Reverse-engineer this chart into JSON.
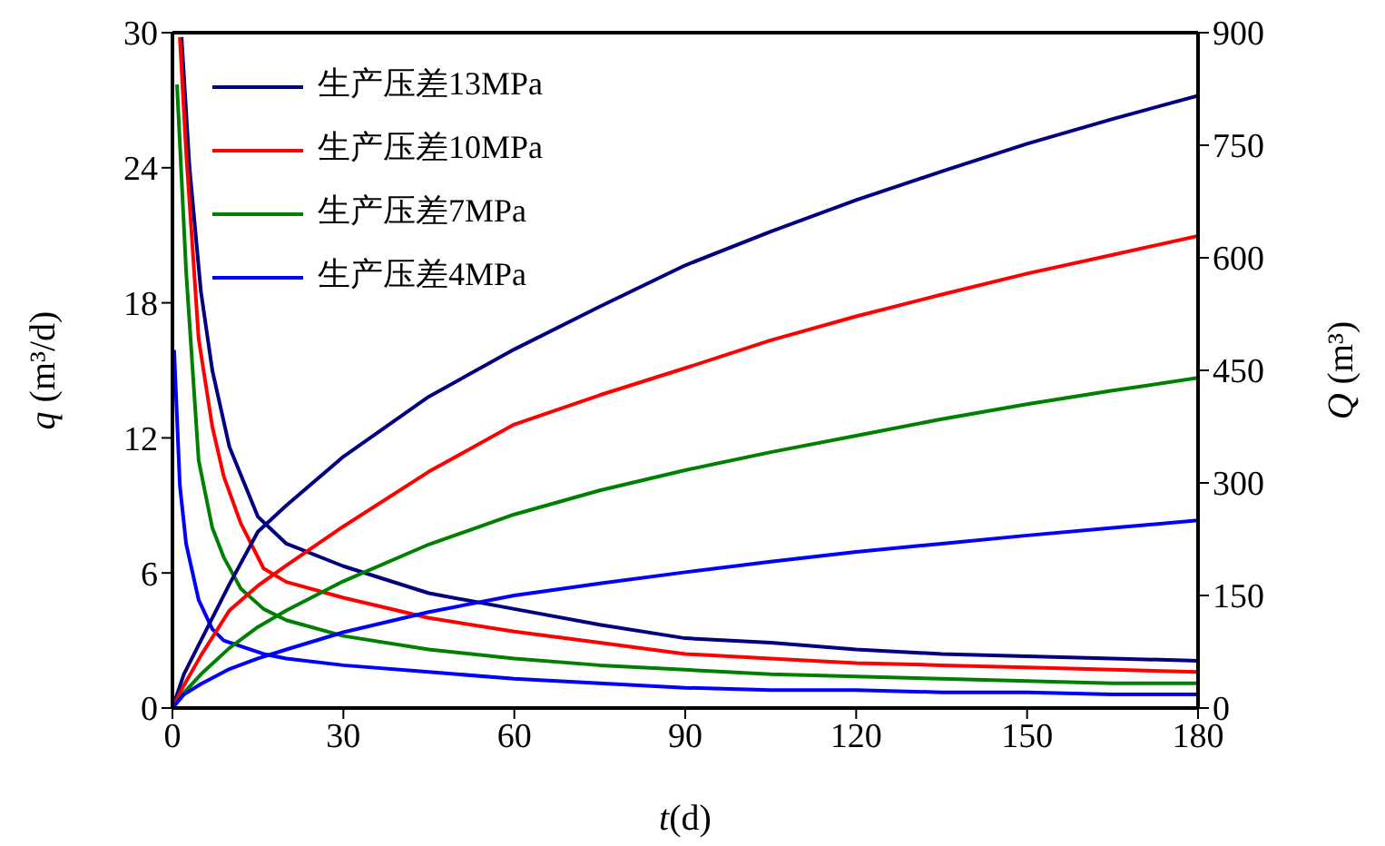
{
  "chart_data": {
    "type": "line",
    "xlabel": "t(d)",
    "ylabel": "q (m³/d)",
    "y2label": "Q (m³)",
    "xlim": [
      0,
      180
    ],
    "xticks": [
      0,
      30,
      60,
      90,
      120,
      150,
      180
    ],
    "ylim": [
      0,
      30
    ],
    "yticks": [
      0,
      6,
      12,
      18,
      24,
      30
    ],
    "y2lim": [
      0,
      900
    ],
    "y2ticks": [
      0,
      150,
      300,
      450,
      600,
      750,
      900
    ],
    "legend": "top left",
    "marker": "none",
    "line_style": "solid",
    "series": [
      {
        "name": "生产压差13MPa",
        "color": "#000080",
        "x": [
          1.6,
          3,
          5,
          7,
          10,
          15,
          20,
          30,
          45,
          60,
          75,
          90,
          105,
          120,
          135,
          150,
          165,
          180
        ],
        "values": [
          29.8,
          24,
          18.5,
          15,
          11.6,
          8.5,
          7.3,
          6.3,
          5.1,
          4.4,
          3.7,
          3.1,
          2.9,
          2.6,
          2.4,
          2.3,
          2.2,
          2.1
        ]
      },
      {
        "name": "生产压差10MPa",
        "color": "#ff0000",
        "x": [
          1.3,
          2.4,
          4.6,
          7,
          9,
          12,
          16,
          20,
          30,
          45,
          60,
          75,
          90,
          105,
          120,
          135,
          150,
          165,
          180
        ],
        "values": [
          29.8,
          24.7,
          16.4,
          12.5,
          10.3,
          8.2,
          6.2,
          5.6,
          4.9,
          4,
          3.4,
          2.9,
          2.4,
          2.2,
          2,
          1.9,
          1.8,
          1.7,
          1.6
        ]
      },
      {
        "name": "生产压差7MPa",
        "color": "#008000",
        "x": [
          0.8,
          2.4,
          4.6,
          7,
          9,
          12,
          16,
          20,
          30,
          45,
          60,
          75,
          90,
          105,
          120,
          135,
          150,
          165,
          180
        ],
        "values": [
          27.7,
          19.4,
          11,
          8,
          6.7,
          5.3,
          4.4,
          3.9,
          3.2,
          2.6,
          2.2,
          1.9,
          1.7,
          1.5,
          1.4,
          1.3,
          1.2,
          1.1,
          1.1
        ]
      },
      {
        "name": "生产压差4MPa",
        "color": "#0000ff",
        "x": [
          0.3,
          1.3,
          2.4,
          4.6,
          7,
          9,
          16,
          20,
          30,
          45,
          60,
          75,
          90,
          105,
          120,
          135,
          150,
          165,
          180
        ],
        "values": [
          15.9,
          9.9,
          7.3,
          4.8,
          3.5,
          3,
          2.4,
          2.2,
          1.9,
          1.6,
          1.3,
          1.1,
          0.9,
          0.8,
          0.8,
          0.7,
          0.7,
          0.6,
          0.6
        ]
      },
      {
        "color": "#000080",
        "axis": "y2",
        "x": [
          0,
          2,
          5,
          10,
          15,
          20,
          30,
          45,
          60,
          75,
          90,
          105,
          120,
          135,
          150,
          165,
          180
        ],
        "values": [
          0,
          45,
          90,
          165,
          235,
          270,
          335,
          415,
          478,
          535,
          590,
          635,
          677,
          715,
          752,
          785,
          816
        ]
      },
      {
        "color": "#ff0000",
        "axis": "y2",
        "x": [
          0,
          2,
          5,
          10,
          15,
          20,
          30,
          45,
          60,
          75,
          90,
          105,
          120,
          135,
          150,
          165,
          180
        ],
        "values": [
          0,
          30,
          70,
          130,
          163,
          190,
          242,
          315,
          378,
          417,
          453,
          490,
          522,
          551,
          579,
          604,
          629
        ]
      },
      {
        "color": "#008000",
        "axis": "y2",
        "x": [
          0,
          2,
          5,
          10,
          15,
          20,
          30,
          45,
          60,
          75,
          90,
          105,
          120,
          135,
          150,
          165,
          180
        ],
        "values": [
          0,
          20,
          45,
          80,
          108,
          130,
          169,
          218,
          258,
          290,
          317,
          341,
          363,
          385,
          405,
          423,
          440
        ]
      },
      {
        "color": "#0000ff",
        "axis": "y2",
        "x": [
          0,
          2,
          5,
          10,
          15,
          20,
          30,
          45,
          60,
          75,
          90,
          105,
          120,
          135,
          150,
          165,
          180
        ],
        "values": [
          0,
          18,
          32,
          52,
          66,
          78,
          101,
          128,
          150,
          166,
          181,
          195,
          208,
          219,
          230,
          240,
          250
        ]
      }
    ]
  }
}
